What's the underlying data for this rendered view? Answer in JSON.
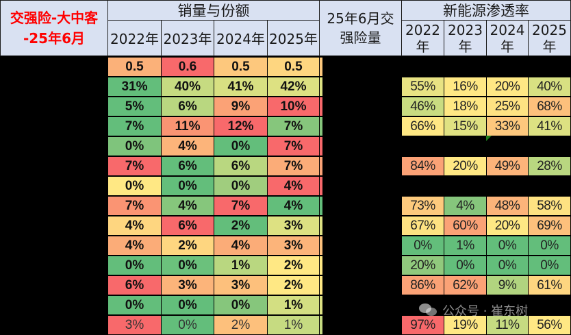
{
  "header": {
    "title_line1": "交强险-大中客",
    "title_line2": "-25年6月",
    "title_color": "#ff0000",
    "sales_group": "销量与份额",
    "mid_line1": "25年6月交",
    "mid_line2": "强险量",
    "nev_group": "新能源渗透率",
    "sales_years": [
      "2022年",
      "2023年",
      "2024年",
      "2025年"
    ],
    "nev_years": [
      {
        "year": "2022",
        "unit": "年"
      },
      {
        "year": "2023",
        "unit": "年"
      },
      {
        "year": "2024",
        "unit": "年"
      },
      {
        "year": "2025",
        "unit": "年"
      }
    ]
  },
  "colors": {
    "header_bg": "#d9e1f2",
    "red": "#f8696b",
    "orange": "#fba276",
    "light_orange": "#fdc07c",
    "yellow": "#ffe884",
    "yellow_green": "#d8e082",
    "light_green": "#b9d780",
    "green": "#86c67c",
    "dark_green": "#63be7b"
  },
  "rows": [
    {
      "sales": [
        {
          "v": "0.5",
          "c": "#fbb179"
        },
        {
          "v": "0.6",
          "c": "#f8696b"
        },
        {
          "v": "0.5",
          "c": "#fdc87d"
        },
        {
          "v": "0.5",
          "c": "#fed680"
        }
      ],
      "nev": null
    },
    {
      "sales": [
        {
          "v": "31%",
          "c": "#63be7b"
        },
        {
          "v": "40%",
          "c": "#c6db81"
        },
        {
          "v": "41%",
          "c": "#d8e082"
        },
        {
          "v": "42%",
          "c": "#dde182"
        }
      ],
      "nev": [
        {
          "v": "55%",
          "c": "#e8e383"
        },
        {
          "v": "16%",
          "c": "#ffe884"
        },
        {
          "v": "20%",
          "c": "#ffe884"
        },
        {
          "v": "40%",
          "c": "#d8e082"
        }
      ]
    },
    {
      "sales": [
        {
          "v": "5%",
          "c": "#63be7b"
        },
        {
          "v": "6%",
          "c": "#b9d780"
        },
        {
          "v": "9%",
          "c": "#fba276"
        },
        {
          "v": "10%",
          "c": "#f8696b"
        }
      ],
      "nev": [
        {
          "v": "46%",
          "c": "#c9dc81"
        },
        {
          "v": "18%",
          "c": "#ffe884"
        },
        {
          "v": "25%",
          "c": "#fee282"
        },
        {
          "v": "68%",
          "c": "#fdc07c"
        }
      ]
    },
    {
      "sales": [
        {
          "v": "7%",
          "c": "#63be7b"
        },
        {
          "v": "11%",
          "c": "#fa9473"
        },
        {
          "v": "12%",
          "c": "#f8696b"
        },
        {
          "v": "7%",
          "c": "#86c67c"
        }
      ],
      "nev": [
        {
          "v": "66%",
          "c": "#ffe884"
        },
        {
          "v": "15%",
          "c": "#e0e282"
        },
        {
          "v": "33%",
          "c": "#fdc87d"
        },
        {
          "v": "41%",
          "c": "#dde182"
        }
      ]
    },
    {
      "sales": [
        {
          "v": "0%",
          "c": "#7fc47c"
        },
        {
          "v": "4%",
          "c": "#fcb47a"
        },
        {
          "v": "0%",
          "c": "#63be7b"
        },
        {
          "v": "7%",
          "c": "#f8696b"
        }
      ],
      "nev": null
    },
    {
      "sales": [
        {
          "v": "7%",
          "c": "#f8696b"
        },
        {
          "v": "6%",
          "c": "#63be7b"
        },
        {
          "v": "6%",
          "c": "#b9d780"
        },
        {
          "v": "7%",
          "c": "#fbac78"
        }
      ],
      "nev": [
        {
          "v": "84%",
          "c": "#fba276"
        },
        {
          "v": "20%",
          "c": "#ffe884"
        },
        {
          "v": "49%",
          "c": "#fcb47a"
        },
        {
          "v": "28%",
          "c": "#b9d780"
        }
      ]
    },
    {
      "sales": [
        {
          "v": "0%",
          "c": "#ffe884"
        },
        {
          "v": "0%",
          "c": "#63be7b"
        },
        {
          "v": "0%",
          "c": "#a0cd7e"
        },
        {
          "v": "4%",
          "c": "#f8696b"
        }
      ],
      "nev": null
    },
    {
      "sales": [
        {
          "v": "7%",
          "c": "#fa9473"
        },
        {
          "v": "4%",
          "c": "#86c67c"
        },
        {
          "v": "7%",
          "c": "#f8696b"
        },
        {
          "v": "4%",
          "c": "#63be7b"
        }
      ],
      "nev": [
        {
          "v": "73%",
          "c": "#fdca7d"
        },
        {
          "v": "4%",
          "c": "#86c67c"
        },
        {
          "v": "48%",
          "c": "#fcb47a"
        },
        {
          "v": "58%",
          "c": "#fee282"
        }
      ]
    },
    {
      "sales": [
        {
          "v": "4%",
          "c": "#fed680"
        },
        {
          "v": "6%",
          "c": "#f8696b"
        },
        {
          "v": "2%",
          "c": "#63be7b"
        },
        {
          "v": "3%",
          "c": "#dde182"
        }
      ],
      "nev": [
        {
          "v": "67%",
          "c": "#fee282"
        },
        {
          "v": "60%",
          "c": "#fba276"
        },
        {
          "v": "20%",
          "c": "#ffe884"
        },
        {
          "v": "69%",
          "c": "#fdc07c"
        }
      ]
    },
    {
      "sales": [
        {
          "v": "4%",
          "c": "#fbac78"
        },
        {
          "v": "2%",
          "c": "#fed680"
        },
        {
          "v": "4%",
          "c": "#fbac78"
        },
        {
          "v": "3%",
          "c": "#fcb47a"
        }
      ],
      "nev": [
        {
          "v": "0%",
          "c": "#63be7b"
        },
        {
          "v": "1%",
          "c": "#63be7b"
        },
        {
          "v": "0%",
          "c": "#63be7b"
        },
        {
          "v": "0%",
          "c": "#63be7b"
        }
      ]
    },
    {
      "sales": [
        {
          "v": "0%",
          "c": "#63be7b"
        },
        {
          "v": "0%",
          "c": "#6bc17c"
        },
        {
          "v": "1%",
          "c": "#b9d780"
        },
        {
          "v": "2%",
          "c": "#ffe884"
        }
      ],
      "nev": [
        {
          "v": "20%",
          "c": "#90c97d"
        },
        {
          "v": "0%",
          "c": "#63be7b"
        },
        {
          "v": "0%",
          "c": "#63be7b"
        },
        {
          "v": "0%",
          "c": "#63be7b"
        }
      ]
    },
    {
      "sales": [
        {
          "v": "6%",
          "c": "#f8696b"
        },
        {
          "v": "3%",
          "c": "#fcb47a"
        },
        {
          "v": "3%",
          "c": "#fdc07c"
        },
        {
          "v": "2%",
          "c": "#ffe884"
        }
      ],
      "nev": [
        {
          "v": "86%",
          "c": "#fba276"
        },
        {
          "v": "62%",
          "c": "#fba276"
        },
        {
          "v": "9%",
          "c": "#b1d47f"
        },
        {
          "v": "61%",
          "c": "#fed680"
        }
      ]
    },
    {
      "sales": [
        {
          "v": "0%",
          "c": "#63be7b"
        },
        {
          "v": "0%",
          "c": "#63be7b"
        },
        {
          "v": "0%",
          "c": "#86c67c"
        },
        {
          "v": "1%",
          "c": "#d3df82"
        }
      ],
      "nev": null
    },
    {
      "sales": [
        {
          "v": "3%",
          "c": "#f8696b",
          "faded": true
        },
        {
          "v": "0%",
          "c": "#63be7b",
          "faded": true
        },
        {
          "v": "2%",
          "c": "#fdc07c",
          "faded": true
        },
        {
          "v": "1%",
          "c": "#c6db81",
          "faded": true
        }
      ],
      "nev": [
        {
          "v": "97%",
          "c": "#f8696b"
        },
        {
          "v": "19%",
          "c": "#ffe884"
        },
        {
          "v": "11%",
          "c": "#c6db81"
        },
        {
          "v": "56%",
          "c": "#ffe884"
        }
      ]
    }
  ],
  "mid_colors": [
    "#fdc87d",
    "#dde182",
    "#f8696b",
    "#86c67c",
    "#f8696b",
    "#fba276",
    "#f8696b",
    "#63be7b",
    "#dde182",
    "#fdc07c",
    "#ffe884",
    "#ffe884",
    "#dde182",
    "#c6db81"
  ],
  "watermark": {
    "text": "公众号 · 崔东树",
    "icon": "wechat-icon"
  }
}
